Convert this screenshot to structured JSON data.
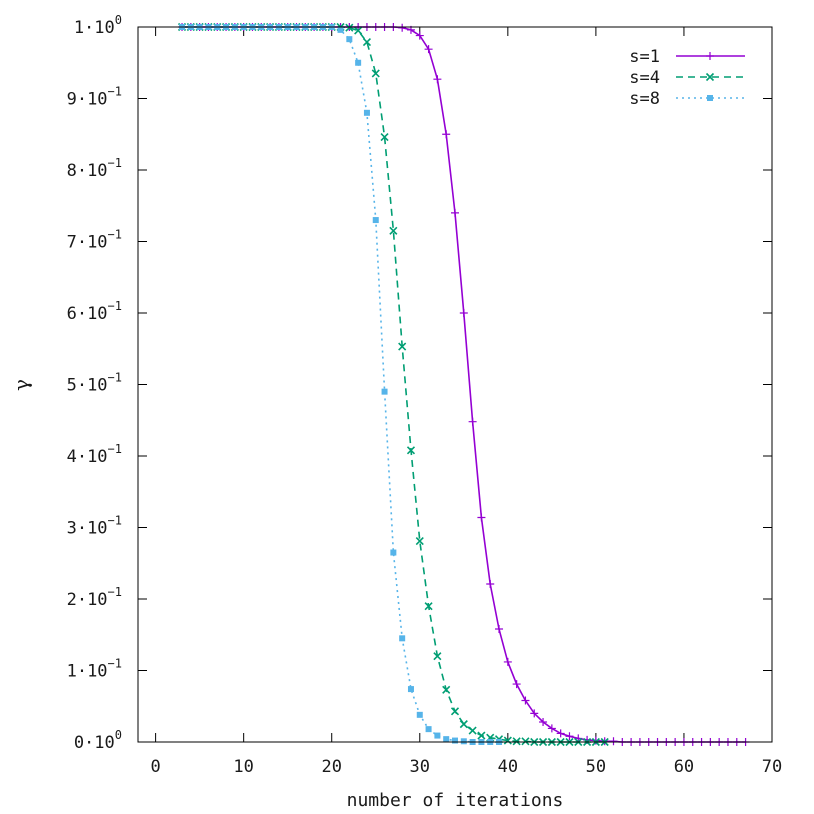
{
  "chart_data": {
    "type": "line",
    "xlabel": "number of iterations",
    "ylabel": "γ",
    "xlim": [
      -2,
      70
    ],
    "ylim": [
      0,
      1
    ],
    "x_ticks": [
      0,
      10,
      20,
      30,
      40,
      50,
      60,
      70
    ],
    "y_ticks": [
      {
        "value": 0.0,
        "mant": "0·10",
        "exp": "0"
      },
      {
        "value": 0.1,
        "mant": "1·10",
        "exp": "−1"
      },
      {
        "value": 0.2,
        "mant": "2·10",
        "exp": "−1"
      },
      {
        "value": 0.3,
        "mant": "3·10",
        "exp": "−1"
      },
      {
        "value": 0.4,
        "mant": "4·10",
        "exp": "−1"
      },
      {
        "value": 0.5,
        "mant": "5·10",
        "exp": "−1"
      },
      {
        "value": 0.6,
        "mant": "6·10",
        "exp": "−1"
      },
      {
        "value": 0.7,
        "mant": "7·10",
        "exp": "−1"
      },
      {
        "value": 0.8,
        "mant": "8·10",
        "exp": "−1"
      },
      {
        "value": 0.9,
        "mant": "9·10",
        "exp": "−1"
      },
      {
        "value": 1.0,
        "mant": "1·10",
        "exp": "0"
      }
    ],
    "grid": false,
    "legend_position": "top-right",
    "series": [
      {
        "name": "s=1",
        "color": "#9400d3",
        "dash": "solid",
        "marker": "plus",
        "x": [
          3,
          4,
          5,
          6,
          7,
          8,
          9,
          10,
          11,
          12,
          13,
          14,
          15,
          16,
          17,
          18,
          19,
          20,
          21,
          22,
          23,
          24,
          25,
          26,
          27,
          28,
          29,
          30,
          31,
          32,
          33,
          34,
          35,
          36,
          37,
          38,
          39,
          40,
          41,
          42,
          43,
          44,
          45,
          46,
          47,
          48,
          49,
          50,
          51,
          52,
          53,
          54,
          55,
          56,
          57,
          58,
          59,
          60,
          61,
          62,
          63,
          64,
          65,
          66,
          67
        ],
        "y": [
          1.0,
          1.0,
          1.0,
          1.0,
          1.0,
          1.0,
          1.0,
          1.0,
          1.0,
          1.0,
          1.0,
          1.0,
          1.0,
          1.0,
          1.0,
          1.0,
          1.0,
          1.0,
          1.0,
          1.0,
          1.0,
          1.0,
          1.0,
          1.0,
          1.0,
          0.999,
          0.996,
          0.988,
          0.969,
          0.927,
          0.85,
          0.74,
          0.6,
          0.448,
          0.314,
          0.221,
          0.158,
          0.112,
          0.081,
          0.058,
          0.04,
          0.028,
          0.019,
          0.012,
          0.008,
          0.005,
          0.003,
          0.002,
          0.001,
          0.001,
          0.0,
          0.0,
          0.0,
          0.0,
          0.0,
          0.0,
          0.0,
          0.0,
          0.0,
          0.0,
          0.0,
          0.0,
          0.0,
          0.0,
          0.0
        ]
      },
      {
        "name": "s=4",
        "color": "#009e73",
        "dash": "dashed",
        "marker": "cross",
        "x": [
          3,
          4,
          5,
          6,
          7,
          8,
          9,
          10,
          11,
          12,
          13,
          14,
          15,
          16,
          17,
          18,
          19,
          20,
          21,
          22,
          23,
          24,
          25,
          26,
          27,
          28,
          29,
          30,
          31,
          32,
          33,
          34,
          35,
          36,
          37,
          38,
          39,
          40,
          41,
          42,
          43,
          44,
          45,
          46,
          47,
          48,
          49,
          50,
          51
        ],
        "y": [
          1.0,
          1.0,
          1.0,
          1.0,
          1.0,
          1.0,
          1.0,
          1.0,
          1.0,
          1.0,
          1.0,
          1.0,
          1.0,
          1.0,
          1.0,
          1.0,
          1.0,
          1.0,
          1.0,
          0.999,
          0.995,
          0.979,
          0.935,
          0.846,
          0.715,
          0.553,
          0.408,
          0.281,
          0.19,
          0.12,
          0.073,
          0.043,
          0.025,
          0.016,
          0.009,
          0.006,
          0.004,
          0.002,
          0.001,
          0.001,
          0.0,
          0.0,
          0.0,
          0.0,
          0.0,
          0.0,
          0.0,
          0.0,
          0.0
        ]
      },
      {
        "name": "s=8",
        "color": "#56b4e9",
        "dash": "dotted",
        "marker": "square",
        "x": [
          3,
          4,
          5,
          6,
          7,
          8,
          9,
          10,
          11,
          12,
          13,
          14,
          15,
          16,
          17,
          18,
          19,
          20,
          21,
          22,
          23,
          24,
          25,
          26,
          27,
          28,
          29,
          30,
          31,
          32,
          33,
          34,
          35,
          36,
          37,
          38,
          39
        ],
        "y": [
          1.0,
          1.0,
          1.0,
          1.0,
          1.0,
          1.0,
          1.0,
          1.0,
          1.0,
          1.0,
          1.0,
          1.0,
          1.0,
          1.0,
          1.0,
          1.0,
          1.0,
          1.0,
          0.996,
          0.983,
          0.95,
          0.88,
          0.73,
          0.49,
          0.265,
          0.145,
          0.074,
          0.038,
          0.018,
          0.009,
          0.004,
          0.002,
          0.001,
          0.0,
          0.0,
          0.0,
          0.0
        ]
      }
    ]
  }
}
